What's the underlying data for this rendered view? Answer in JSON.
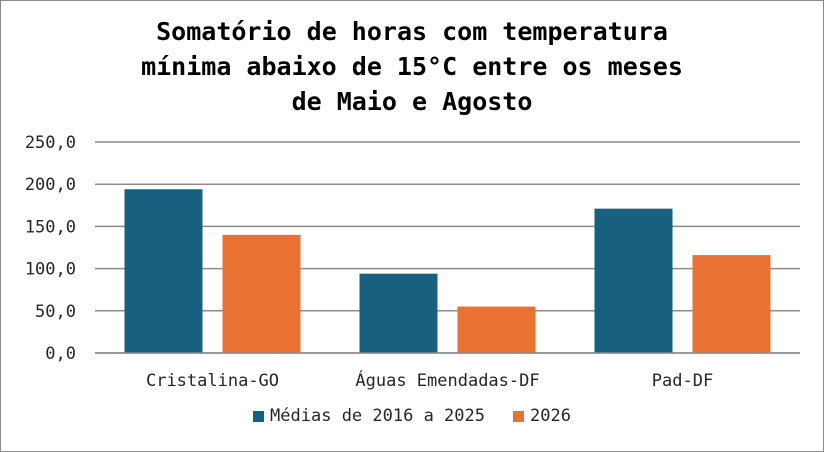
{
  "chart_data": {
    "type": "bar",
    "title_lines": [
      "Somatório de horas com temperatura",
      "mínima abaixo de 15°C entre os meses",
      "de Maio e Agosto"
    ],
    "categories": [
      "Cristalina-GO",
      "Águas Emendadas-DF",
      "Pad-DF"
    ],
    "series": [
      {
        "name": "Médias de 2016 a 2025",
        "values": [
          194,
          94,
          171
        ],
        "color": "#17607f"
      },
      {
        "name": "2026",
        "values": [
          140,
          55,
          116
        ],
        "color": "#e97132"
      }
    ],
    "ylim": [
      0,
      250
    ],
    "yticks": [
      "0,0",
      "50,0",
      "100,0",
      "150,0",
      "200,0",
      "250,0"
    ],
    "grid": true,
    "legend_position": "bottom"
  }
}
